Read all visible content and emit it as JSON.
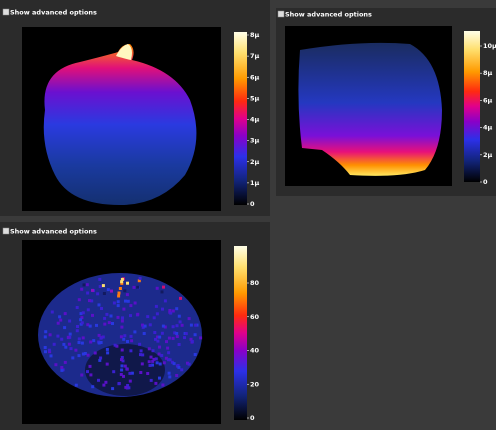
{
  "panels": [
    {
      "checkbox_label": "Show advanced options",
      "colorbar_ticks": [
        "8μ",
        "7μ",
        "6μ",
        "5μ",
        "4μ",
        "3μ",
        "2μ",
        "1μ",
        "0"
      ]
    },
    {
      "checkbox_label": "Show advanced options",
      "colorbar_ticks": [
        "10μ",
        "8μ",
        "6μ",
        "4μ",
        "2μ",
        "0"
      ]
    },
    {
      "checkbox_label": "Show advanced options",
      "colorbar_ticks": [
        "80",
        "60",
        "40",
        "20",
        "0"
      ]
    }
  ]
}
